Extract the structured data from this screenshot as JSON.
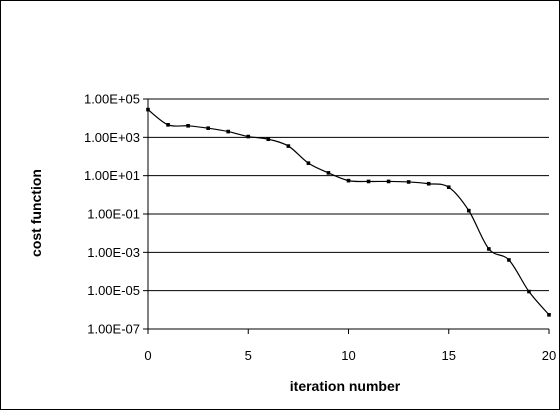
{
  "chart_data": {
    "type": "line",
    "title": "",
    "xlabel": "iteration number",
    "ylabel": "cost function",
    "y_scale": "log",
    "xlim": [
      0,
      20
    ],
    "ylim": [
      1e-07,
      100000.0
    ],
    "x_ticks": [
      "0",
      "5",
      "10",
      "15",
      "20"
    ],
    "y_ticks": [
      "1.00E+05",
      "1.00E+03",
      "1.00E+01",
      "1.00E-01",
      "1.00E-03",
      "1.00E-05",
      "1.00E-07"
    ],
    "grid": "horizontal",
    "legend": "none",
    "series": [
      {
        "x": [
          0,
          1,
          2,
          3,
          4,
          5,
          6,
          7,
          8,
          9,
          10,
          11,
          12,
          13,
          14,
          15,
          16,
          17,
          18,
          19,
          20
        ],
        "y": [
          28000,
          4500,
          4000,
          3000,
          2000,
          1100,
          800,
          350,
          45,
          14,
          5.5,
          5,
          5,
          4.7,
          3.8,
          2.5,
          0.15,
          0.0015,
          0.0004,
          9e-06,
          5.5e-07
        ]
      }
    ],
    "colors": {
      "line": "#000000",
      "grid": "#000000",
      "background": "#ffffff"
    }
  }
}
